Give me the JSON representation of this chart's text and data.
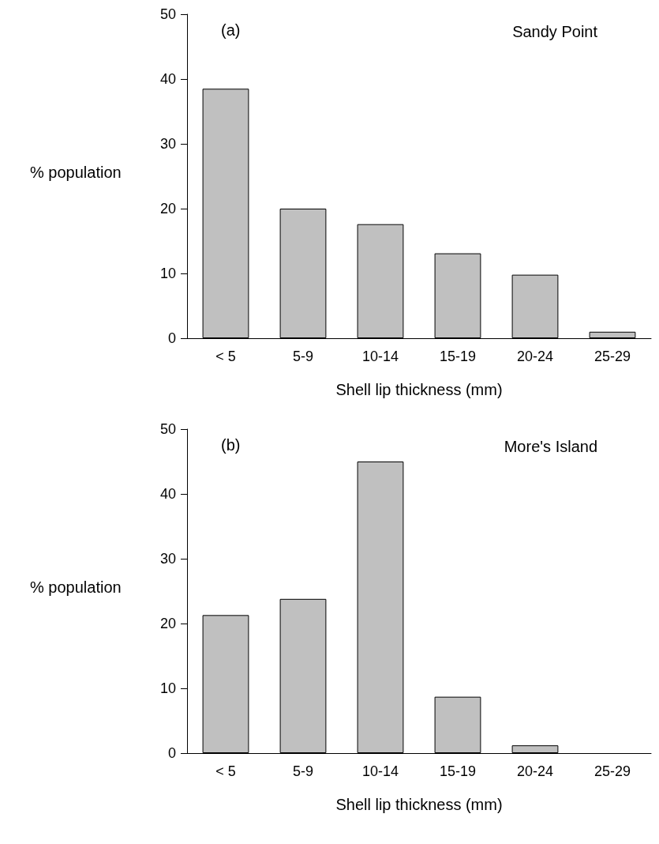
{
  "chart_data": [
    {
      "type": "bar",
      "categories": [
        "< 5",
        "5-9",
        "10-14",
        "15-19",
        "20-24",
        "25-29"
      ],
      "values": [
        38.5,
        20,
        17.6,
        13.1,
        9.8,
        1
      ],
      "color": "#c0c0c0",
      "ylim": [
        0,
        50
      ],
      "yticks": [
        0,
        10,
        20,
        30,
        40,
        50
      ],
      "xlabel": "Shell lip thickness (mm)",
      "ylabel": "% population",
      "annotations": [
        "(a)",
        "Sandy Point"
      ],
      "grid": false
    },
    {
      "type": "bar",
      "categories": [
        "< 5",
        "5-9",
        "10-14",
        "15-19",
        "20-24",
        "25-29"
      ],
      "values": [
        21.3,
        23.8,
        45,
        8.7,
        1.2,
        null
      ],
      "color": "#c0c0c0",
      "ylim": [
        0,
        50
      ],
      "yticks": [
        0,
        10,
        20,
        30,
        40,
        50
      ],
      "xlabel": "Shell lip thickness (mm)",
      "ylabel": "% population",
      "annotations": [
        "(b)",
        "More's Island"
      ],
      "grid": false
    }
  ]
}
